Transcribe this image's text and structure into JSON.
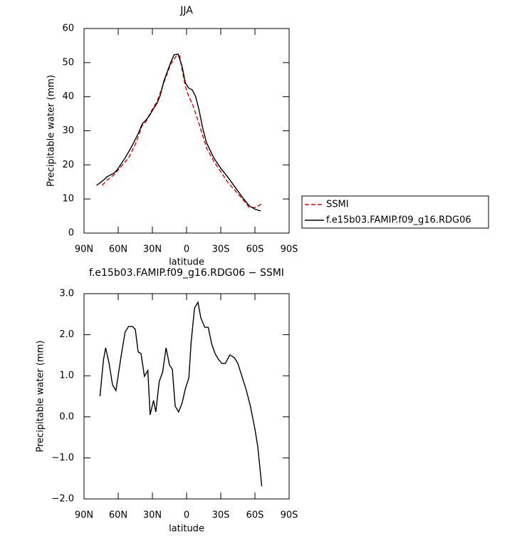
{
  "chart_data": [
    {
      "type": "line",
      "title": "JJA",
      "xlabel": "latitude",
      "ylabel": "Precipitable water (mm)",
      "xlim": [
        90,
        -90
      ],
      "ylim": [
        0,
        60
      ],
      "xticks": [
        {
          "value": 90,
          "label": "90N"
        },
        {
          "value": 60,
          "label": "60N"
        },
        {
          "value": 30,
          "label": "30N"
        },
        0,
        {
          "value": -30,
          "label": "30S"
        },
        {
          "value": -60,
          "label": "60S"
        },
        {
          "value": -90,
          "label": "90S"
        }
      ],
      "yticks": [
        0,
        10,
        20,
        30,
        40,
        50,
        60
      ],
      "legend": "right",
      "series": [
        {
          "name": "SSMI",
          "color": "#e00000",
          "dash": true,
          "x": [
            74,
            70,
            64,
            57.5,
            51,
            45,
            39,
            36,
            29,
            26,
            20,
            14,
            9,
            6,
            4,
            1,
            -2,
            -5,
            -11,
            -17.5,
            -24,
            -30,
            -36,
            -42.5,
            -49,
            -55,
            -60,
            -66
          ],
          "values": [
            14,
            15.5,
            17,
            19.5,
            22,
            26,
            31.5,
            32.5,
            37,
            38.5,
            44,
            49.5,
            52,
            52,
            48,
            43,
            40,
            38,
            32,
            25,
            21,
            18,
            15,
            12.5,
            10,
            7.5,
            7.5,
            8.5
          ]
        },
        {
          "name": "f.e15b03.FAMIP.f09_g16.RDG06",
          "color": "#000000",
          "dash": false,
          "x": [
            79,
            73,
            70,
            64,
            61,
            54,
            48,
            42,
            39,
            36,
            32.5,
            29,
            26,
            23,
            20,
            14,
            11,
            7.5,
            4,
            1,
            -2,
            -5,
            -8,
            -11,
            -14,
            -17.5,
            -24,
            -30,
            -36,
            -42.5,
            -49,
            -55,
            -60,
            -65
          ],
          "values": [
            14,
            15.5,
            16.5,
            17.5,
            18.5,
            22,
            25.5,
            29.5,
            32,
            33,
            34.5,
            36.5,
            38,
            40.5,
            44.5,
            50,
            52.3,
            52.5,
            49,
            44,
            42.5,
            42,
            40,
            36,
            31,
            26.5,
            22,
            19,
            16.5,
            13.5,
            10.5,
            8,
            7,
            6.5
          ]
        }
      ]
    },
    {
      "type": "line",
      "title": "f.e15b03.FAMIP.f09_g16.RDG06 − SSMI",
      "xlabel": "latitude",
      "ylabel": "Precipitable water (mm)",
      "xlim": [
        90,
        -90
      ],
      "ylim": [
        -2,
        3
      ],
      "xticks": [
        {
          "value": 90,
          "label": "90N"
        },
        {
          "value": 60,
          "label": "60N"
        },
        {
          "value": 30,
          "label": "30N"
        },
        0,
        {
          "value": -30,
          "label": "30S"
        },
        {
          "value": -60,
          "label": "60S"
        },
        {
          "value": -90,
          "label": "90S"
        }
      ],
      "yticks": [
        {
          "value": -2,
          "label": "−2.0"
        },
        {
          "value": -1,
          "label": "−1.0"
        },
        {
          "value": 0,
          "label": "0.0"
        },
        {
          "value": 1,
          "label": "1.0"
        },
        {
          "value": 2,
          "label": "2.0"
        },
        {
          "value": 3,
          "label": "3.0"
        }
      ],
      "color": "#000000",
      "x": [
        76,
        73,
        71,
        68,
        65,
        62,
        57.5,
        54,
        51,
        47.5,
        45,
        42.5,
        40,
        37,
        34,
        32,
        29,
        27,
        24,
        21,
        18,
        15,
        12.5,
        10,
        7,
        4,
        1,
        -2,
        -4,
        -7,
        -10,
        -12.5,
        -16,
        -19,
        -22,
        -25,
        -28,
        -31,
        -34,
        -38,
        -42,
        -45,
        -49,
        -52.5,
        -56,
        -60,
        -62.5,
        -66
      ],
      "values": [
        0.5,
        1.38,
        1.68,
        1.3,
        0.78,
        0.64,
        1.47,
        2.06,
        2.2,
        2.2,
        2.13,
        1.58,
        1.54,
        0.99,
        1.13,
        0.05,
        0.4,
        0.12,
        0.86,
        1.09,
        1.68,
        1.26,
        1.16,
        0.26,
        0.12,
        0.33,
        0.69,
        0.95,
        1.82,
        2.65,
        2.79,
        2.41,
        2.18,
        2.18,
        1.78,
        1.54,
        1.4,
        1.3,
        1.3,
        1.51,
        1.44,
        1.3,
        0.95,
        0.64,
        0.26,
        -0.3,
        -0.73,
        -1.69
      ]
    }
  ]
}
